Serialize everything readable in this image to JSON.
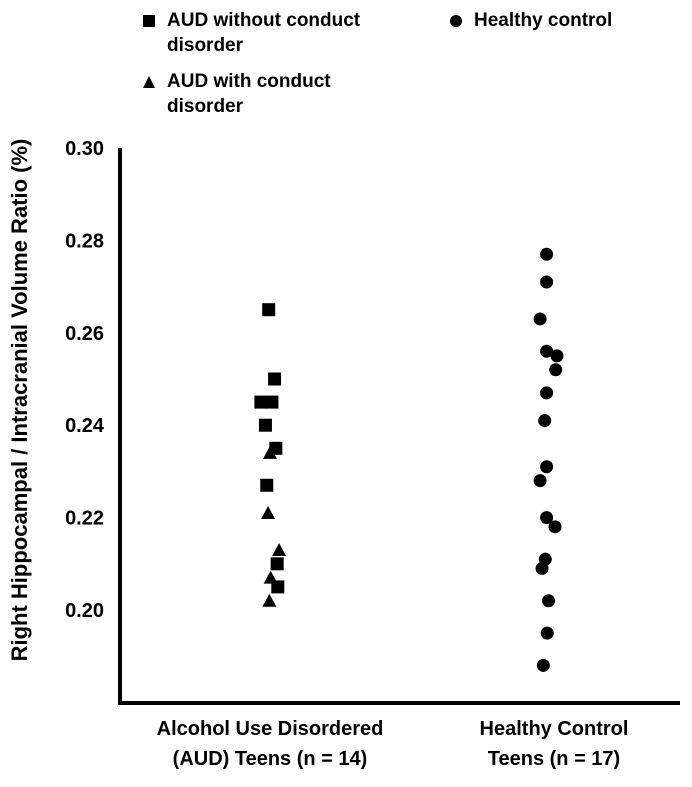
{
  "chart_data": {
    "type": "scatter",
    "title": "",
    "xlabel": "",
    "ylabel": "Right Hippocampal / Intracranial Volume Ratio (%)",
    "ylim": [
      0.18,
      0.3
    ],
    "yticks": [
      "0.20",
      "0.22",
      "0.24",
      "0.26",
      "0.28",
      "0.30"
    ],
    "grid": false,
    "legend_position": "top",
    "categories": [
      "Alcohol Use Disordered\n(AUD) Teens (n = 14)",
      "Healthy Control\nTeens (n = 17)"
    ],
    "series": [
      {
        "name": "AUD without conduct disorder",
        "marker": "square",
        "color": "#000000",
        "points": [
          {
            "x": 0,
            "jitter": -0.01,
            "y": 0.265
          },
          {
            "x": 0,
            "jitter": 0.035,
            "y": 0.25
          },
          {
            "x": 0,
            "jitter": -0.07,
            "y": 0.245
          },
          {
            "x": 0,
            "jitter": 0.015,
            "y": 0.245
          },
          {
            "x": 0,
            "jitter": -0.035,
            "y": 0.24
          },
          {
            "x": 0,
            "jitter": 0.045,
            "y": 0.235
          },
          {
            "x": 0,
            "jitter": -0.025,
            "y": 0.227
          },
          {
            "x": 0,
            "jitter": 0.055,
            "y": 0.21
          },
          {
            "x": 0,
            "jitter": 0.06,
            "y": 0.205
          }
        ]
      },
      {
        "name": "AUD with conduct disorder",
        "marker": "triangle",
        "color": "#000000",
        "points": [
          {
            "x": 0,
            "jitter": 0.0,
            "y": 0.234
          },
          {
            "x": 0,
            "jitter": -0.015,
            "y": 0.221
          },
          {
            "x": 0,
            "jitter": 0.07,
            "y": 0.213
          },
          {
            "x": 0,
            "jitter": 0.005,
            "y": 0.207
          },
          {
            "x": 0,
            "jitter": -0.005,
            "y": 0.202
          }
        ]
      },
      {
        "name": "Healthy control",
        "marker": "circle",
        "color": "#000000",
        "points": [
          {
            "x": 1,
            "jitter": 0.02,
            "y": 0.277
          },
          {
            "x": 1,
            "jitter": 0.02,
            "y": 0.271
          },
          {
            "x": 1,
            "jitter": -0.03,
            "y": 0.263
          },
          {
            "x": 1,
            "jitter": 0.02,
            "y": 0.256
          },
          {
            "x": 1,
            "jitter": 0.1,
            "y": 0.255
          },
          {
            "x": 1,
            "jitter": 0.09,
            "y": 0.252
          },
          {
            "x": 1,
            "jitter": 0.02,
            "y": 0.247
          },
          {
            "x": 1,
            "jitter": 0.005,
            "y": 0.241
          },
          {
            "x": 1,
            "jitter": 0.02,
            "y": 0.231
          },
          {
            "x": 1,
            "jitter": -0.03,
            "y": 0.228
          },
          {
            "x": 1,
            "jitter": 0.02,
            "y": 0.22
          },
          {
            "x": 1,
            "jitter": 0.085,
            "y": 0.218
          },
          {
            "x": 1,
            "jitter": 0.01,
            "y": 0.211
          },
          {
            "x": 1,
            "jitter": -0.015,
            "y": 0.209
          },
          {
            "x": 1,
            "jitter": 0.035,
            "y": 0.202
          },
          {
            "x": 1,
            "jitter": 0.025,
            "y": 0.195
          },
          {
            "x": 1,
            "jitter": -0.005,
            "y": 0.188
          }
        ]
      }
    ]
  },
  "legend": [
    {
      "label": "AUD without conduct disorder",
      "marker": "square"
    },
    {
      "label": "AUD with conduct disorder",
      "marker": "triangle"
    },
    {
      "label": "Healthy control",
      "marker": "circle"
    }
  ]
}
